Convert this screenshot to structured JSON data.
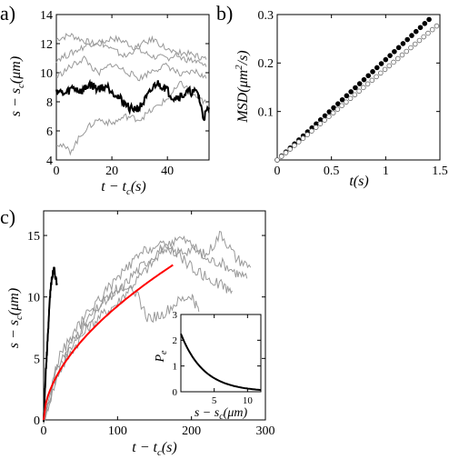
{
  "chart_data": [
    {
      "panel_label": "a)",
      "type": "line",
      "xlabel_base": "t − t",
      "xlabel_sub": "c",
      "xlabel_tail": "(s)",
      "ylabel_base": "s − s",
      "ylabel_sub": "c",
      "ylabel_tail": "(μm)",
      "xlim": [
        0,
        55
      ],
      "ylim": [
        4,
        14
      ],
      "xticks": [
        0,
        20,
        40
      ],
      "yticks": [
        4,
        6,
        8,
        10,
        12,
        14
      ],
      "series": [
        {
          "color": "#999999",
          "x": [
            0,
            5,
            10,
            15,
            20,
            25,
            30,
            35,
            40,
            45,
            50,
            54
          ],
          "y": [
            12.3,
            12.6,
            12.2,
            11.9,
            12.4,
            12.1,
            11.5,
            11.1,
            11.0,
            11.4,
            11.2,
            10.9
          ]
        },
        {
          "color": "#999999",
          "x": [
            0,
            5,
            10,
            15,
            20,
            25,
            30,
            35,
            40,
            45,
            50,
            54
          ],
          "y": [
            10.9,
            11.3,
            11.8,
            12.2,
            11.6,
            11.1,
            11.9,
            12.3,
            11.6,
            11.0,
            10.8,
            10.4
          ]
        },
        {
          "color": "#999999",
          "x": [
            0,
            5,
            10,
            15,
            20,
            25,
            30,
            35,
            40,
            45,
            50,
            54
          ],
          "y": [
            9.7,
            10.4,
            11.0,
            9.9,
            10.6,
            10.1,
            9.6,
            10.2,
            10.5,
            9.8,
            10.1,
            9.6
          ]
        },
        {
          "color": "#999999",
          "x": [
            0,
            5,
            10,
            15,
            20,
            25,
            30,
            35,
            40,
            45,
            50,
            54
          ],
          "y": [
            5.2,
            4.6,
            6.0,
            6.8,
            6.5,
            7.0,
            6.8,
            7.5,
            8.2,
            9.3,
            8.4,
            7.9
          ]
        },
        {
          "color": "#000000",
          "x": [
            0,
            3,
            6,
            9,
            12,
            15,
            18,
            21,
            24,
            27,
            30,
            33,
            36,
            39,
            42,
            45,
            48,
            51,
            53,
            55
          ],
          "y": [
            8.8,
            8.5,
            9.0,
            8.7,
            9.2,
            8.9,
            9.1,
            8.6,
            8.0,
            7.5,
            7.6,
            8.4,
            9.3,
            9.0,
            8.3,
            8.4,
            8.7,
            8.6,
            6.9,
            7.6
          ]
        }
      ]
    },
    {
      "panel_label": "b)",
      "type": "scatter",
      "xlabel": "t(s)",
      "ylabel_base": "MSD(μm",
      "ylabel_sup": "2",
      "ylabel_tail": "/s)",
      "xlim": [
        0,
        1.5
      ],
      "ylim": [
        0,
        0.3
      ],
      "xticks": [
        0,
        0.5,
        1,
        1.5
      ],
      "yticks": [
        0.1,
        0.2,
        0.3
      ],
      "xticklabels": [
        "0",
        "0.5",
        "1",
        "1.5"
      ],
      "yticklabels": [
        "0.1",
        "0.2",
        "0.3"
      ],
      "series": [
        {
          "style": "filled",
          "color": "#000000",
          "slope": 0.207,
          "x_start": 0,
          "x_end": 1.4,
          "n_points": 36
        },
        {
          "style": "open",
          "color": "#666666",
          "slope": 0.188,
          "x_start": 0,
          "x_end": 1.47,
          "n_points": 38
        }
      ]
    },
    {
      "panel_label": "c)",
      "type": "line",
      "xlabel_base": "t − t",
      "xlabel_sub": "c",
      "xlabel_tail": "(s)",
      "ylabel_base": "s − s",
      "ylabel_sub": "c",
      "ylabel_tail": "(μm)",
      "xlim": [
        0,
        300
      ],
      "ylim": [
        0,
        17
      ],
      "xticks": [
        0,
        100,
        200,
        300
      ],
      "yticks": [
        0,
        5,
        10,
        15
      ],
      "series": [
        {
          "color": "#999999",
          "x": [
            0,
            20,
            40,
            60,
            80,
            100,
            120,
            140,
            160,
            180,
            200,
            220,
            240,
            260,
            280
          ],
          "y": [
            0,
            4.5,
            6.5,
            8.2,
            9.5,
            10.3,
            11.8,
            12.9,
            14.0,
            13.6,
            13.9,
            13.4,
            15.2,
            13.2,
            12.4
          ]
        },
        {
          "color": "#999999",
          "x": [
            0,
            20,
            40,
            60,
            80,
            100,
            120,
            140,
            160,
            180,
            200,
            220,
            240,
            260,
            275
          ],
          "y": [
            0,
            3.8,
            5.8,
            7.5,
            8.6,
            9.5,
            11.0,
            12.3,
            13.6,
            14.9,
            14.3,
            13.0,
            12.8,
            12.0,
            11.5
          ]
        },
        {
          "color": "#999999",
          "x": [
            0,
            20,
            40,
            60,
            80,
            100,
            120,
            140,
            160,
            180,
            200,
            210
          ],
          "y": [
            0,
            4.0,
            6.2,
            8.0,
            9.6,
            10.7,
            11.0,
            8.3,
            8.5,
            9.5,
            10.1,
            8.8
          ]
        },
        {
          "color": "#999999",
          "x": [
            0,
            20,
            40,
            60,
            80,
            100,
            120,
            140,
            160,
            180,
            200,
            220,
            240,
            255
          ],
          "y": [
            0,
            5.0,
            7.0,
            8.7,
            10.2,
            11.5,
            12.8,
            13.9,
            14.2,
            13.6,
            12.4,
            11.6,
            11.0,
            10.5
          ]
        },
        {
          "color": "#000000",
          "x": [
            0,
            3,
            6,
            8,
            10,
            12,
            14,
            16,
            18
          ],
          "y": [
            0,
            4.0,
            7.0,
            9.5,
            11.0,
            11.8,
            12.3,
            11.6,
            11.0
          ]
        }
      ],
      "fit": {
        "color": "#ff0000",
        "x_end": 175,
        "y_end": 12.6,
        "exponent": 0.55
      },
      "inset": {
        "type": "line",
        "ylabel_base": "P",
        "ylabel_sub": "e",
        "xlabel_base": "s − s",
        "xlabel_sub": "c",
        "xlabel_tail": "(μm)",
        "xlim": [
          0,
          12
        ],
        "ylim": [
          0,
          3
        ],
        "xticks": [
          5,
          10
        ],
        "yticks": [
          0,
          1,
          2,
          3
        ],
        "curve": {
          "color": "#000000",
          "y0": 2.25,
          "decay": 0.29,
          "x_end": 12
        }
      }
    }
  ]
}
